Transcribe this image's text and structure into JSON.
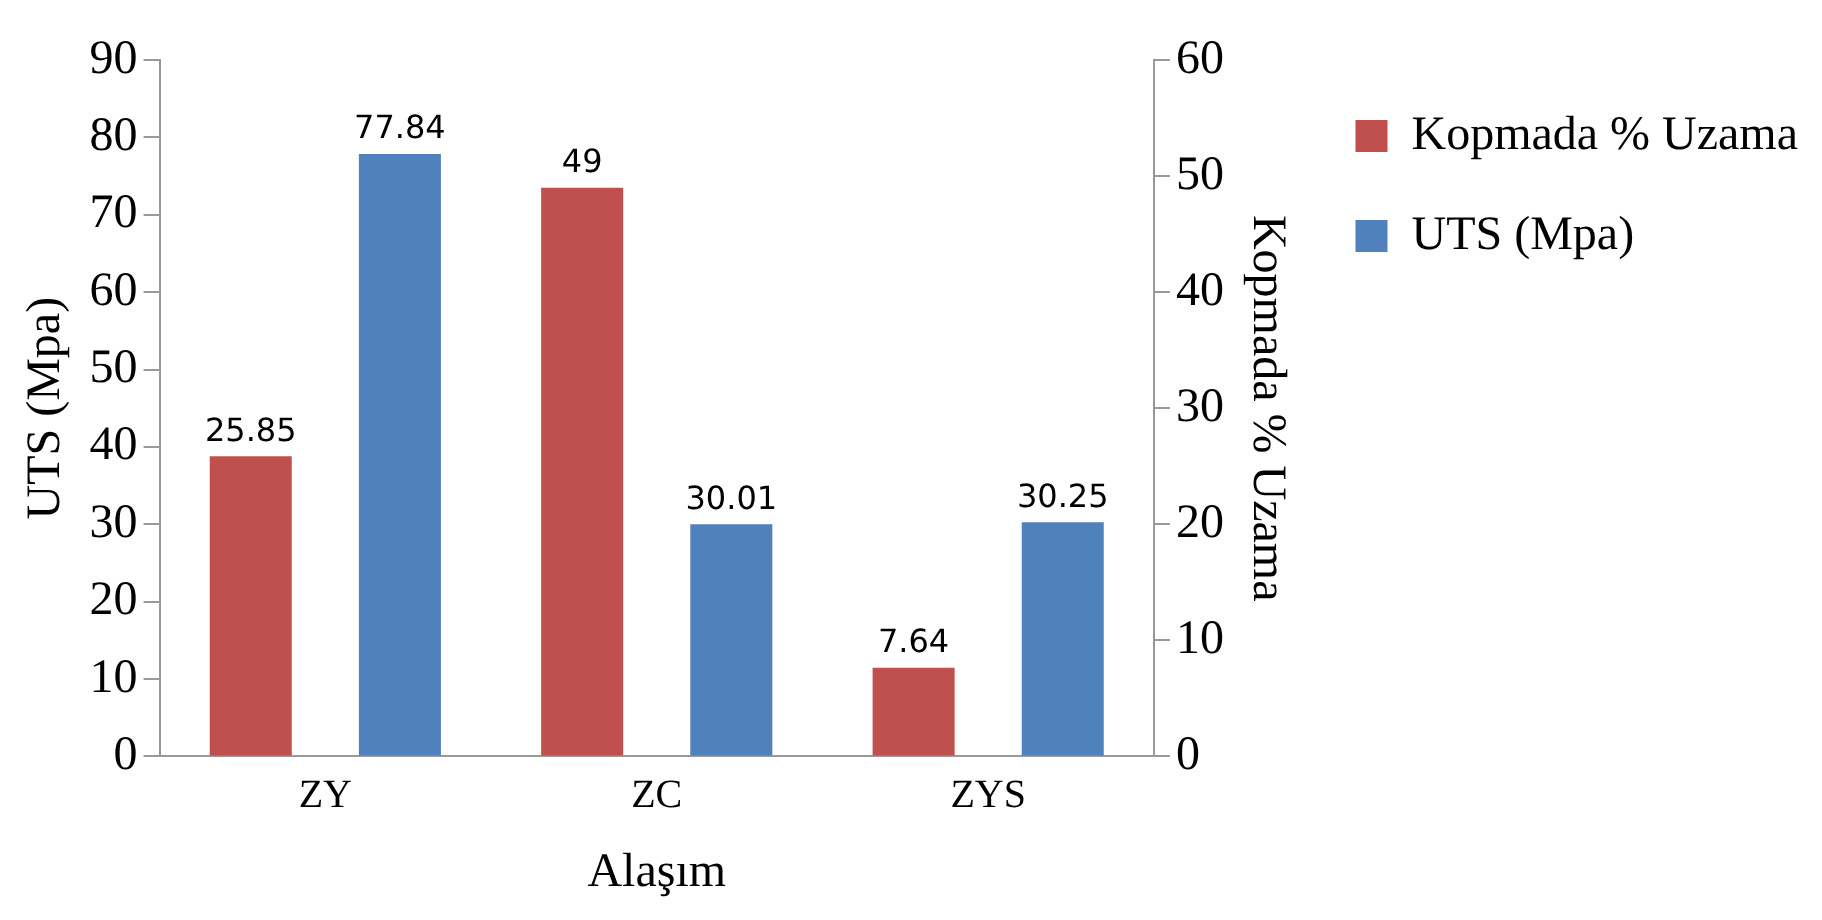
{
  "chart_data": {
    "type": "bar",
    "xlabel": "Alaşım",
    "ylabel": "UTS (Mpa)",
    "y2label": "Kopmada % Uzama",
    "categories": [
      "ZY",
      "ZC",
      "ZYS"
    ],
    "series": [
      {
        "name": "Kopmada % Uzama",
        "color": "#c0504d",
        "values": [
          25.85,
          49,
          7.64
        ],
        "axis": "y2"
      },
      {
        "name": "UTS (Mpa)",
        "color": "#4f81bd",
        "values": [
          77.84,
          30.01,
          30.25
        ]
      }
    ],
    "ylim": [
      0,
      90
    ],
    "yticks": [
      0,
      10,
      20,
      30,
      40,
      50,
      60,
      70,
      80,
      90
    ],
    "y2lim": [
      0,
      60
    ],
    "y2ticks": [
      0,
      10,
      20,
      30,
      40,
      50,
      60
    ],
    "legend": "top right",
    "data_labels": true
  }
}
